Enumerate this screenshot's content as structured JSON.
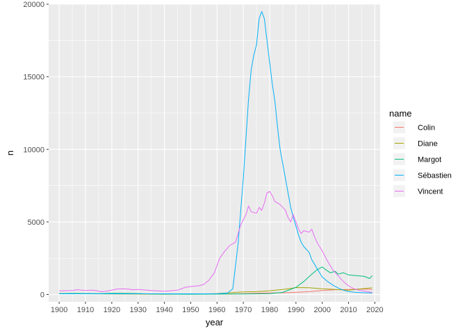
{
  "chart_data": {
    "type": "line",
    "xlabel": "year",
    "ylabel": "n",
    "xlim": [
      1896,
      2022
    ],
    "ylim": [
      -500,
      20000
    ],
    "x_ticks": [
      1900,
      1910,
      1920,
      1930,
      1940,
      1950,
      1960,
      1970,
      1980,
      1990,
      2000,
      2010,
      2020
    ],
    "y_ticks": [
      0,
      5000,
      10000,
      15000,
      20000
    ],
    "grid": true,
    "legend_title": "name",
    "legend_position": "right",
    "series": [
      {
        "name": "Colin",
        "color": "#F8766D",
        "points": [
          [
            1900,
            70
          ],
          [
            1910,
            60
          ],
          [
            1920,
            50
          ],
          [
            1930,
            40
          ],
          [
            1940,
            30
          ],
          [
            1950,
            30
          ],
          [
            1960,
            30
          ],
          [
            1965,
            40
          ],
          [
            1970,
            60
          ],
          [
            1975,
            90
          ],
          [
            1980,
            110
          ],
          [
            1985,
            120
          ],
          [
            1990,
            150
          ],
          [
            1995,
            200
          ],
          [
            2000,
            280
          ],
          [
            2005,
            330
          ],
          [
            2010,
            350
          ],
          [
            2015,
            380
          ],
          [
            2019,
            350
          ]
        ]
      },
      {
        "name": "Diane",
        "color": "#A3A500",
        "points": [
          [
            1900,
            60
          ],
          [
            1910,
            50
          ],
          [
            1920,
            40
          ],
          [
            1930,
            30
          ],
          [
            1940,
            20
          ],
          [
            1950,
            30
          ],
          [
            1955,
            40
          ],
          [
            1960,
            70
          ],
          [
            1965,
            120
          ],
          [
            1970,
            180
          ],
          [
            1975,
            200
          ],
          [
            1980,
            260
          ],
          [
            1985,
            350
          ],
          [
            1988,
            420
          ],
          [
            1990,
            480
          ],
          [
            1995,
            470
          ],
          [
            2000,
            400
          ],
          [
            2005,
            350
          ],
          [
            2010,
            300
          ],
          [
            2015,
            400
          ],
          [
            2019,
            460
          ]
        ]
      },
      {
        "name": "Margot",
        "color": "#00BF7D",
        "points": [
          [
            1900,
            60
          ],
          [
            1905,
            80
          ],
          [
            1910,
            70
          ],
          [
            1915,
            60
          ],
          [
            1920,
            90
          ],
          [
            1925,
            80
          ],
          [
            1930,
            70
          ],
          [
            1935,
            40
          ],
          [
            1940,
            30
          ],
          [
            1950,
            20
          ],
          [
            1960,
            30
          ],
          [
            1970,
            40
          ],
          [
            1980,
            60
          ],
          [
            1985,
            150
          ],
          [
            1990,
            500
          ],
          [
            1993,
            900
          ],
          [
            1996,
            1400
          ],
          [
            1998,
            1700
          ],
          [
            2000,
            1900
          ],
          [
            2001,
            1750
          ],
          [
            2003,
            1500
          ],
          [
            2005,
            1600
          ],
          [
            2006,
            1400
          ],
          [
            2008,
            1500
          ],
          [
            2010,
            1350
          ],
          [
            2013,
            1300
          ],
          [
            2016,
            1250
          ],
          [
            2018,
            1100
          ],
          [
            2019,
            1300
          ]
        ]
      },
      {
        "name": "Sébastien",
        "color": "#00B0F6",
        "points": [
          [
            1900,
            50
          ],
          [
            1960,
            50
          ],
          [
            1964,
            100
          ],
          [
            1966,
            400
          ],
          [
            1968,
            3500
          ],
          [
            1970,
            8000
          ],
          [
            1972,
            13500
          ],
          [
            1973,
            15500
          ],
          [
            1974,
            16500
          ],
          [
            1975,
            17200
          ],
          [
            1976,
            19000
          ],
          [
            1977,
            19500
          ],
          [
            1978,
            19000
          ],
          [
            1979,
            17500
          ],
          [
            1980,
            16000
          ],
          [
            1981,
            14500
          ],
          [
            1982,
            13300
          ],
          [
            1983,
            11500
          ],
          [
            1984,
            10000
          ],
          [
            1985,
            9000
          ],
          [
            1986,
            8000
          ],
          [
            1987,
            7000
          ],
          [
            1988,
            6000
          ],
          [
            1989,
            5300
          ],
          [
            1990,
            4700
          ],
          [
            1991,
            4100
          ],
          [
            1992,
            3600
          ],
          [
            1993,
            3300
          ],
          [
            1994,
            3100
          ],
          [
            1995,
            2900
          ],
          [
            1996,
            2400
          ],
          [
            1997,
            2100
          ],
          [
            1998,
            1800
          ],
          [
            1999,
            1500
          ],
          [
            2000,
            1200
          ],
          [
            2002,
            900
          ],
          [
            2004,
            650
          ],
          [
            2006,
            450
          ],
          [
            2008,
            300
          ],
          [
            2010,
            200
          ],
          [
            2013,
            150
          ],
          [
            2016,
            120
          ],
          [
            2019,
            100
          ]
        ]
      },
      {
        "name": "Vincent",
        "color": "#E76BF3",
        "points": [
          [
            1900,
            250
          ],
          [
            1905,
            280
          ],
          [
            1907,
            330
          ],
          [
            1910,
            280
          ],
          [
            1913,
            300
          ],
          [
            1916,
            200
          ],
          [
            1918,
            230
          ],
          [
            1920,
            300
          ],
          [
            1922,
            380
          ],
          [
            1925,
            400
          ],
          [
            1928,
            330
          ],
          [
            1930,
            350
          ],
          [
            1935,
            280
          ],
          [
            1940,
            220
          ],
          [
            1945,
            300
          ],
          [
            1948,
            500
          ],
          [
            1950,
            550
          ],
          [
            1953,
            600
          ],
          [
            1955,
            700
          ],
          [
            1957,
            1000
          ],
          [
            1959,
            1500
          ],
          [
            1961,
            2500
          ],
          [
            1963,
            3000
          ],
          [
            1965,
            3400
          ],
          [
            1967,
            3600
          ],
          [
            1969,
            4800
          ],
          [
            1971,
            5500
          ],
          [
            1972,
            6100
          ],
          [
            1973,
            5700
          ],
          [
            1975,
            5600
          ],
          [
            1976,
            6000
          ],
          [
            1977,
            5800
          ],
          [
            1978,
            6300
          ],
          [
            1979,
            7000
          ],
          [
            1980,
            7100
          ],
          [
            1981,
            6800
          ],
          [
            1982,
            6400
          ],
          [
            1984,
            6200
          ],
          [
            1986,
            5800
          ],
          [
            1987,
            5300
          ],
          [
            1988,
            5000
          ],
          [
            1989,
            5500
          ],
          [
            1990,
            5000
          ],
          [
            1991,
            4500
          ],
          [
            1992,
            4200
          ],
          [
            1993,
            4400
          ],
          [
            1995,
            4300
          ],
          [
            1996,
            4500
          ],
          [
            1997,
            4000
          ],
          [
            1998,
            3600
          ],
          [
            2000,
            3000
          ],
          [
            2002,
            2300
          ],
          [
            2004,
            1700
          ],
          [
            2006,
            1300
          ],
          [
            2008,
            900
          ],
          [
            2010,
            600
          ],
          [
            2012,
            400
          ],
          [
            2014,
            300
          ],
          [
            2017,
            200
          ],
          [
            2019,
            150
          ]
        ]
      }
    ]
  }
}
